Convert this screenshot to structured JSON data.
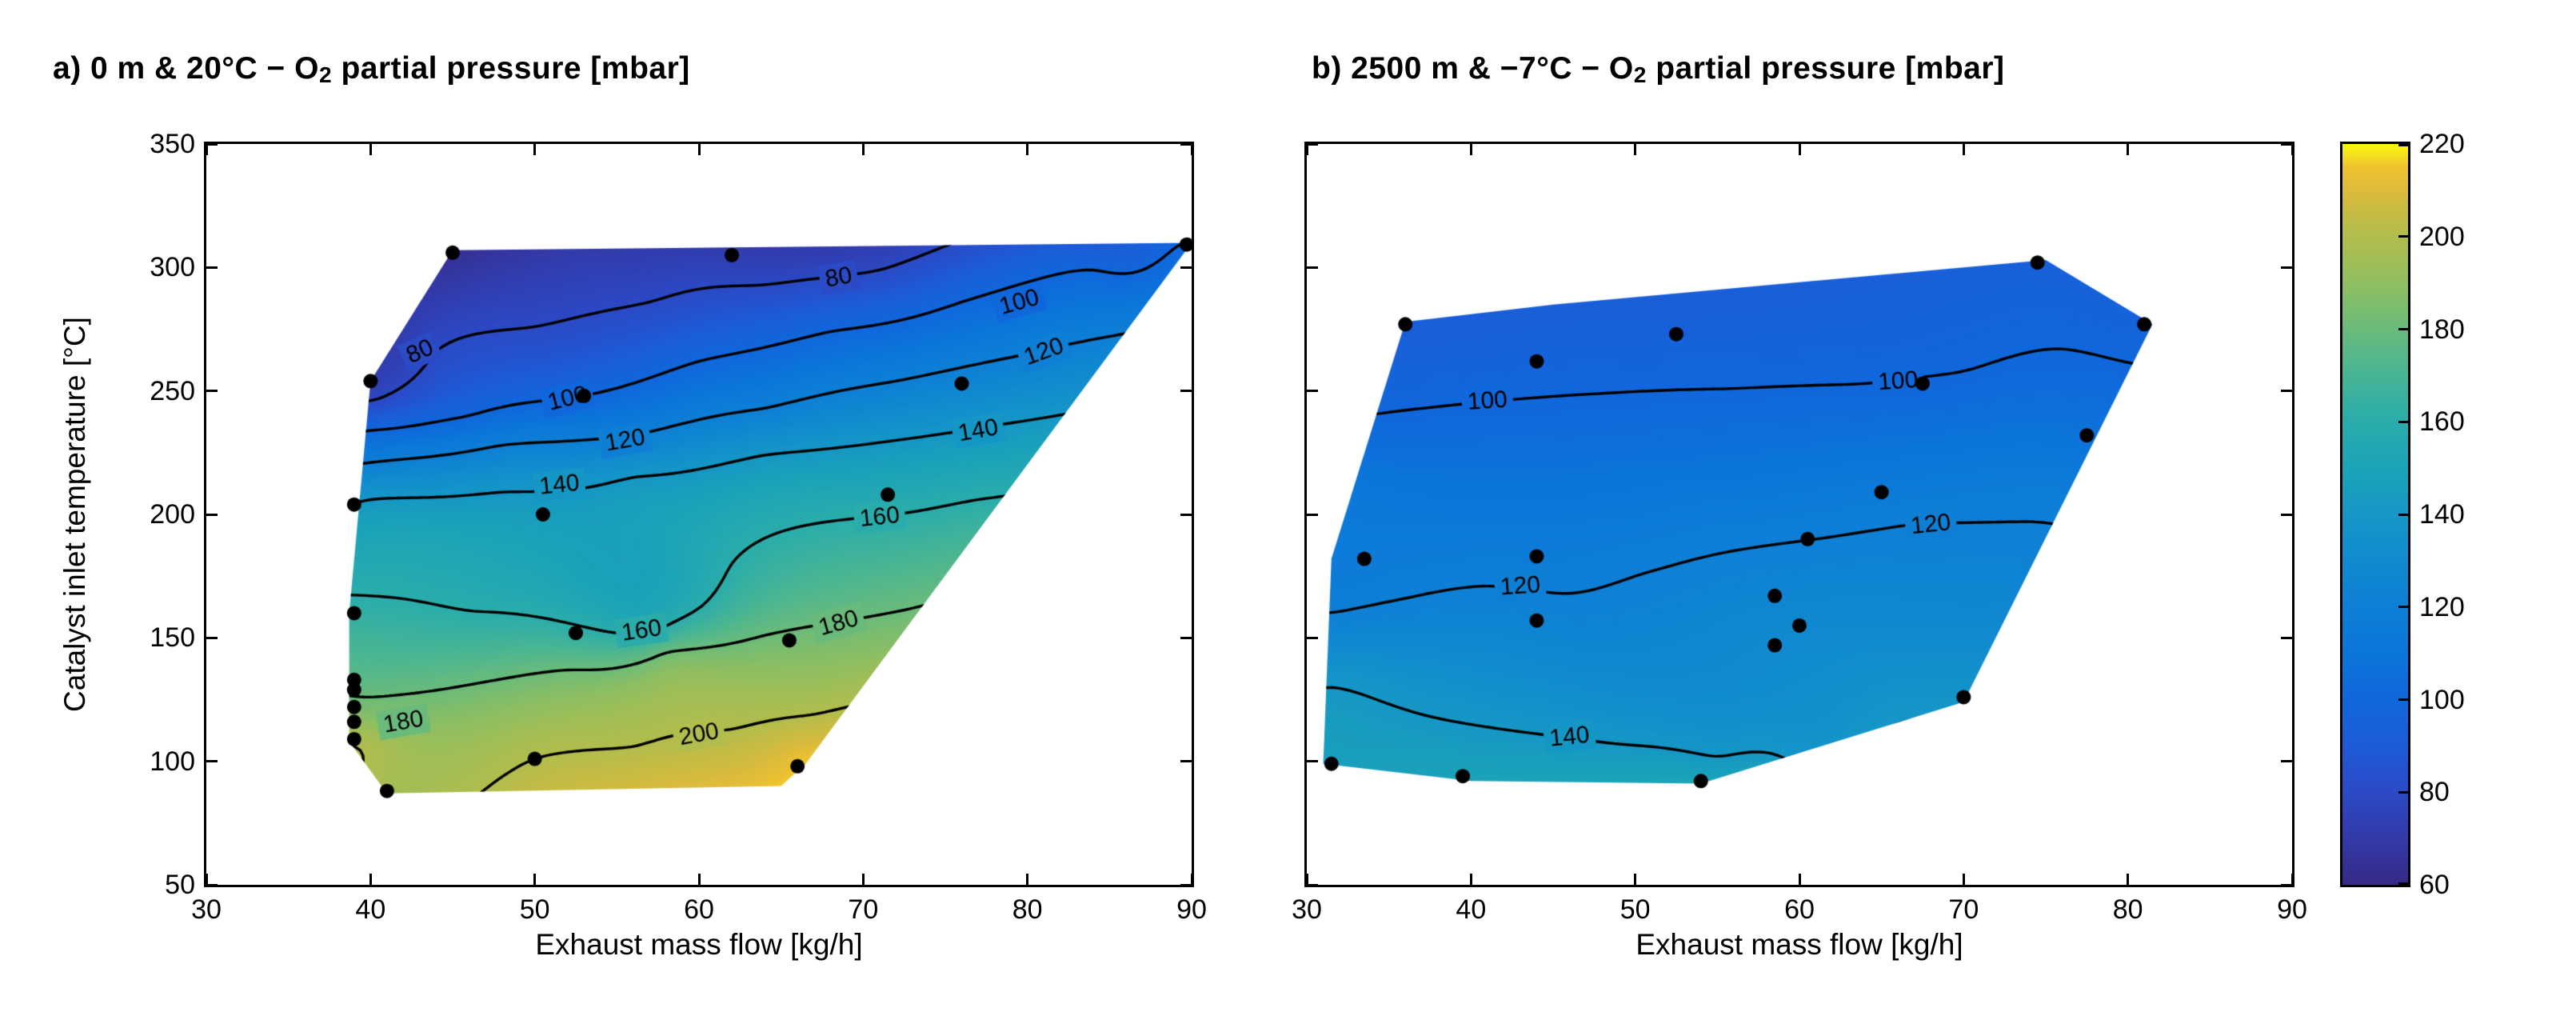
{
  "colorbar": {
    "min": 60,
    "max": 220,
    "ticks": [
      60,
      80,
      100,
      120,
      140,
      160,
      180,
      200,
      220
    ],
    "tick_labels": [
      "60",
      "80",
      "100",
      "120",
      "140",
      "160",
      "180",
      "200",
      "220"
    ],
    "colormap_name": "parula",
    "colormap": [
      {
        "t": 0.0,
        "c": "#352a87"
      },
      {
        "t": 0.06,
        "c": "#3339a8"
      },
      {
        "t": 0.13,
        "c": "#2a4bc8"
      },
      {
        "t": 0.19,
        "c": "#1c5cd8"
      },
      {
        "t": 0.25,
        "c": "#1067dc"
      },
      {
        "t": 0.31,
        "c": "#0b75da"
      },
      {
        "t": 0.38,
        "c": "#0e80d5"
      },
      {
        "t": 0.44,
        "c": "#118bcf"
      },
      {
        "t": 0.5,
        "c": "#1597c6"
      },
      {
        "t": 0.56,
        "c": "#1ba3b8"
      },
      {
        "t": 0.63,
        "c": "#2cadaa"
      },
      {
        "t": 0.69,
        "c": "#48b594"
      },
      {
        "t": 0.75,
        "c": "#6abb7b"
      },
      {
        "t": 0.81,
        "c": "#8fbe61"
      },
      {
        "t": 0.88,
        "c": "#b4bd4b"
      },
      {
        "t": 0.93,
        "c": "#d7ba3e"
      },
      {
        "t": 0.97,
        "c": "#f0c32e"
      },
      {
        "t": 1.0,
        "c": "#f9fb0e"
      }
    ]
  },
  "chart_data": [
    {
      "type": "filled-contour",
      "title": {
        "prefix": "a) 0 m & 20°C − O",
        "sub": "2",
        "suffix": " partial pressure [mbar]"
      },
      "xlabel": "Exhaust mass flow [kg/h]",
      "ylabel": "Catalyst inlet temperature [°C]",
      "xlim": [
        30,
        90
      ],
      "ylim": [
        50,
        350
      ],
      "x_ticks": [
        30,
        40,
        50,
        60,
        70,
        80,
        90
      ],
      "x_tick_labels": [
        "30",
        "40",
        "50",
        "60",
        "70",
        "80",
        "90"
      ],
      "y_ticks": [
        50,
        100,
        150,
        200,
        250,
        300,
        350
      ],
      "y_tick_labels": [
        "50",
        "100",
        "150",
        "200",
        "250",
        "300",
        "350"
      ],
      "grid": false,
      "contour_levels": [
        80,
        100,
        120,
        140,
        160,
        180,
        200
      ],
      "contour_labels": [
        {
          "level": 80,
          "m": 43,
          "T": 266,
          "rot": -24
        },
        {
          "level": 80,
          "m": 68.5,
          "T": 296,
          "rot": -10
        },
        {
          "level": 100,
          "m": 52,
          "T": 247,
          "rot": -14
        },
        {
          "level": 100,
          "m": 79.5,
          "T": 286,
          "rot": -16
        },
        {
          "level": 120,
          "m": 55.5,
          "T": 230,
          "rot": -10
        },
        {
          "level": 120,
          "m": 81,
          "T": 266,
          "rot": -20
        },
        {
          "level": 140,
          "m": 51.5,
          "T": 212,
          "rot": -6
        },
        {
          "level": 140,
          "m": 77,
          "T": 234,
          "rot": -10
        },
        {
          "level": 160,
          "m": 56.5,
          "T": 153,
          "rot": -8
        },
        {
          "level": 160,
          "m": 71,
          "T": 199,
          "rot": -6
        },
        {
          "level": 180,
          "m": 42,
          "T": 116,
          "rot": -10
        },
        {
          "level": 180,
          "m": 68.5,
          "T": 156,
          "rot": -16
        },
        {
          "level": 200,
          "m": 60,
          "T": 111,
          "rot": -10
        }
      ],
      "domain_polygon": [
        [
          41,
          87
        ],
        [
          65,
          90
        ],
        [
          66.5,
          99
        ],
        [
          90,
          310
        ],
        [
          45,
          307
        ],
        [
          40,
          254
        ],
        [
          38.7,
          160
        ],
        [
          38.7,
          108
        ]
      ],
      "field_points": [
        [
          40,
          246,
          80
        ],
        [
          44,
          266,
          80
        ],
        [
          50,
          276,
          80
        ],
        [
          57,
          286,
          80
        ],
        [
          64,
          293,
          80
        ],
        [
          71,
          299,
          80
        ],
        [
          40,
          234,
          100
        ],
        [
          46,
          240,
          100
        ],
        [
          52,
          247,
          100
        ],
        [
          60,
          262,
          100
        ],
        [
          68,
          274,
          100
        ],
        [
          76,
          286,
          100
        ],
        [
          84,
          299,
          100
        ],
        [
          89,
          308,
          100
        ],
        [
          40,
          221,
          120
        ],
        [
          48,
          228,
          120
        ],
        [
          56,
          232,
          120
        ],
        [
          64,
          243,
          120
        ],
        [
          72,
          254,
          120
        ],
        [
          80,
          265,
          120
        ],
        [
          40,
          206,
          140
        ],
        [
          48,
          209,
          140
        ],
        [
          56,
          215,
          140
        ],
        [
          64,
          224,
          140
        ],
        [
          72,
          230,
          140
        ],
        [
          78,
          236,
          140
        ],
        [
          40,
          167,
          160
        ],
        [
          46,
          161,
          160
        ],
        [
          52,
          156,
          160
        ],
        [
          57,
          152,
          160
        ],
        [
          60,
          162,
          160
        ],
        [
          62,
          180,
          160
        ],
        [
          65,
          193,
          160
        ],
        [
          69,
          198,
          160
        ],
        [
          73,
          201,
          160
        ],
        [
          77,
          206,
          160
        ],
        [
          40,
          126,
          180
        ],
        [
          46,
          131,
          180
        ],
        [
          52,
          137,
          180
        ],
        [
          58,
          144,
          180
        ],
        [
          64,
          151,
          180
        ],
        [
          69,
          157,
          180
        ],
        [
          73,
          162,
          180
        ],
        [
          50,
          101,
          200
        ],
        [
          56,
          106,
          200
        ],
        [
          62,
          113,
          200
        ],
        [
          67,
          119,
          200
        ],
        [
          45,
          300,
          67
        ],
        [
          43.5,
          285,
          72
        ],
        [
          52,
          303,
          72
        ],
        [
          60,
          304,
          74
        ],
        [
          86,
          303,
          95
        ],
        [
          41,
          88,
          196
        ],
        [
          48,
          90,
          201
        ],
        [
          58,
          92,
          208
        ],
        [
          65,
          95,
          213
        ],
        [
          66,
          99,
          214
        ],
        [
          39,
          108,
          199
        ],
        [
          39,
          118,
          187
        ],
        [
          39,
          150,
          168
        ],
        [
          78,
          210,
          158
        ]
      ],
      "data_points": [
        [
          45,
          306
        ],
        [
          62,
          305
        ],
        [
          89.7,
          309.3
        ],
        [
          40,
          254
        ],
        [
          53,
          248
        ],
        [
          76,
          253
        ],
        [
          39,
          204
        ],
        [
          50.5,
          200
        ],
        [
          71.5,
          208
        ],
        [
          39,
          160
        ],
        [
          52.5,
          152
        ],
        [
          65.5,
          149
        ],
        [
          39,
          133
        ],
        [
          39,
          129
        ],
        [
          39,
          122
        ],
        [
          39,
          116
        ],
        [
          39,
          109
        ],
        [
          50,
          101
        ],
        [
          66,
          98
        ],
        [
          41,
          88
        ]
      ]
    },
    {
      "type": "filled-contour",
      "title": {
        "prefix": "b) 2500 m & −7°C − O",
        "sub": "2",
        "suffix": " partial pressure [mbar]"
      },
      "xlabel": "Exhaust mass flow [kg/h]",
      "ylabel": "",
      "xlim": [
        30,
        90
      ],
      "ylim": [
        50,
        350
      ],
      "x_ticks": [
        30,
        40,
        50,
        60,
        70,
        80,
        90
      ],
      "x_tick_labels": [
        "30",
        "40",
        "50",
        "60",
        "70",
        "80",
        "90"
      ],
      "y_ticks": [
        50,
        100,
        150,
        200,
        250,
        300,
        350
      ],
      "y_tick_labels": [],
      "grid": false,
      "contour_levels": [
        100,
        120,
        140
      ],
      "contour_labels": [
        {
          "level": 100,
          "m": 41,
          "T": 246,
          "rot": -4
        },
        {
          "level": 100,
          "m": 66,
          "T": 254,
          "rot": -4
        },
        {
          "level": 120,
          "m": 43,
          "T": 171,
          "rot": -4
        },
        {
          "level": 120,
          "m": 68,
          "T": 196,
          "rot": -6
        },
        {
          "level": 140,
          "m": 46,
          "T": 110,
          "rot": -6
        }
      ],
      "domain_polygon": [
        [
          31,
          99
        ],
        [
          40,
          92
        ],
        [
          54,
          91
        ],
        [
          70,
          124
        ],
        [
          81.5,
          277
        ],
        [
          75,
          303
        ],
        [
          60,
          294
        ],
        [
          45,
          285
        ],
        [
          36,
          278
        ],
        [
          31.5,
          182
        ]
      ],
      "field_points": [
        [
          33,
          240,
          100
        ],
        [
          40,
          245,
          100
        ],
        [
          48,
          249,
          100
        ],
        [
          56,
          251,
          100
        ],
        [
          64,
          253,
          100
        ],
        [
          70,
          258,
          100
        ],
        [
          76,
          267,
          100
        ],
        [
          31,
          160,
          120
        ],
        [
          36,
          166,
          120
        ],
        [
          41,
          171,
          120
        ],
        [
          46,
          168,
          120
        ],
        [
          50,
          175,
          120
        ],
        [
          55,
          184,
          120
        ],
        [
          61,
          190,
          120
        ],
        [
          67,
          196,
          120
        ],
        [
          73,
          197,
          120
        ],
        [
          78,
          191,
          120
        ],
        [
          31.5,
          130,
          140
        ],
        [
          37,
          119,
          140
        ],
        [
          43,
          112,
          140
        ],
        [
          49,
          107,
          140
        ],
        [
          55,
          102,
          140
        ],
        [
          60,
          98,
          140
        ],
        [
          36,
          276,
          92
        ],
        [
          45,
          284,
          92
        ],
        [
          55,
          290,
          92
        ],
        [
          65,
          296,
          93
        ],
        [
          74,
          301,
          94
        ],
        [
          80,
          275,
          97
        ],
        [
          33,
          250,
          98
        ],
        [
          32,
          210,
          112
        ],
        [
          79,
          225,
          110
        ],
        [
          58,
          148,
          129
        ],
        [
          70,
          160,
          127
        ],
        [
          76,
          210,
          117
        ],
        [
          32,
          100,
          146
        ],
        [
          38,
          95,
          148
        ],
        [
          46,
          93,
          149
        ],
        [
          53,
          92,
          150
        ],
        [
          58,
          96,
          146
        ],
        [
          66,
          112,
          141
        ],
        [
          69,
          121,
          139
        ]
      ],
      "data_points": [
        [
          36,
          277
        ],
        [
          44,
          262
        ],
        [
          52.5,
          273
        ],
        [
          67.5,
          253
        ],
        [
          74.5,
          302
        ],
        [
          81,
          277
        ],
        [
          77.5,
          232
        ],
        [
          33.5,
          182
        ],
        [
          44,
          183
        ],
        [
          65,
          209
        ],
        [
          60.5,
          190
        ],
        [
          58.5,
          167
        ],
        [
          60,
          155
        ],
        [
          44,
          157
        ],
        [
          58.5,
          147
        ],
        [
          70,
          126
        ],
        [
          31.5,
          99
        ],
        [
          39.5,
          94
        ],
        [
          54,
          92
        ]
      ]
    }
  ]
}
